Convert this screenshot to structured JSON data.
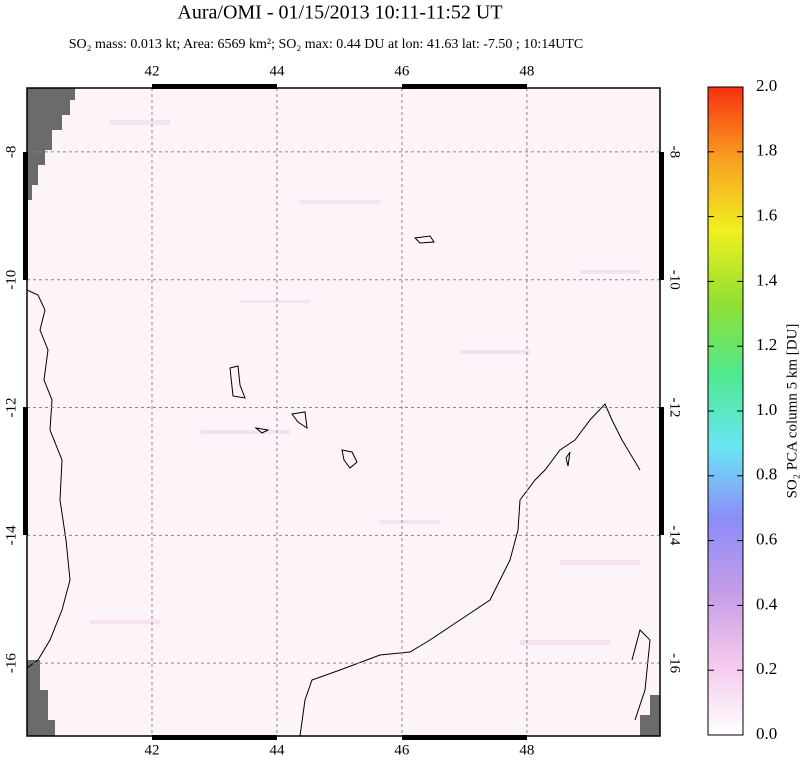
{
  "chart_data": {
    "type": "map",
    "title": "Aura/OMI - 01/15/2013 10:11-11:52 UT",
    "subtitle": "SO₂ mass: 0.013 kt; Area: 6569 km²; SO₂ max: 0.44 DU at lon: 41.63 lat: -7.50 ; 10:14UTC",
    "xlim": [
      40,
      50.13
    ],
    "ylim": [
      -17.14,
      -7.0
    ],
    "xticks": [
      42,
      44,
      46,
      48
    ],
    "yticks": [
      -8,
      -10,
      -12,
      -14,
      -16
    ],
    "grid": true,
    "colorbar": {
      "label": "SO₂ PCA column 5 km [DU]",
      "lim": [
        0,
        2
      ],
      "ticks": [
        {
          "value": 0,
          "label": "0.0"
        },
        {
          "value": 0.2,
          "label": "0.2"
        },
        {
          "value": 0.4,
          "label": "0.4"
        },
        {
          "value": 0.6,
          "label": "0.6"
        },
        {
          "value": 0.8,
          "label": "0.8"
        },
        {
          "value": 1,
          "label": "1.0"
        },
        {
          "value": 1.2,
          "label": "1.2"
        },
        {
          "value": 1.4,
          "label": "1.4"
        },
        {
          "value": 1.6,
          "label": "1.6"
        },
        {
          "value": 1.8,
          "label": "1.8"
        },
        {
          "value": 2,
          "label": "2.0"
        }
      ],
      "colors": [
        "#ffffff",
        "#f4c8ec",
        "#c49ce8",
        "#8c8cf8",
        "#6ae6f4",
        "#50e890",
        "#90e030",
        "#f0f020",
        "#f8a020",
        "#f83010"
      ]
    }
  }
}
